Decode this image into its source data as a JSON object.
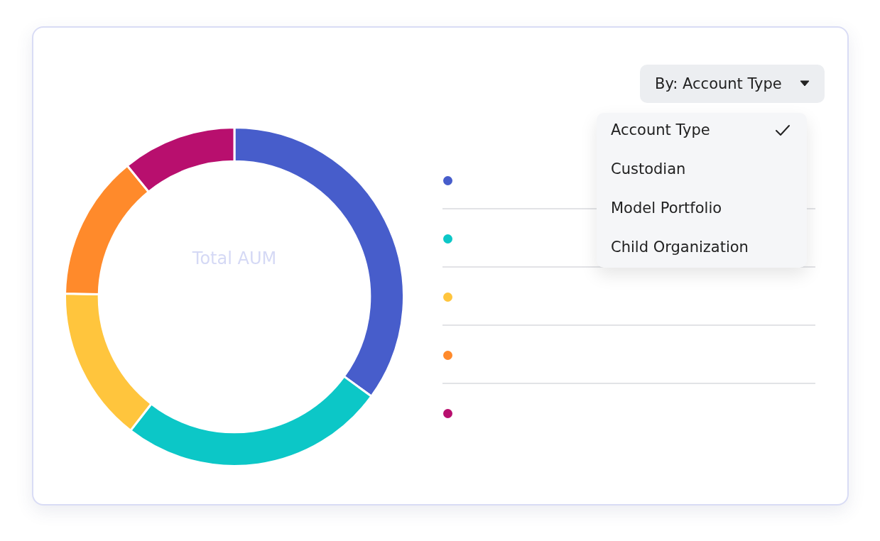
{
  "chart_data": {
    "type": "donut",
    "title": "Total AUM",
    "categories": [
      null,
      null,
      null,
      null,
      null
    ],
    "values": [
      35,
      25.5,
      14.8,
      13.8,
      10.9
    ],
    "colors": [
      "#475dcb",
      "#0cc7c7",
      "#ffc53d",
      "#ff8a2b",
      "#b80f6e"
    ],
    "annotations": [
      "By: Account Type",
      "Account Type",
      "Custodian",
      "Model Portfolio",
      "Child Organization"
    ]
  }
}
